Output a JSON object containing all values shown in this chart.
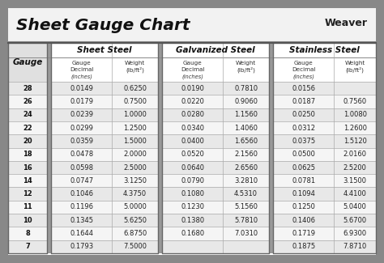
{
  "title": "Sheet Gauge Chart",
  "bg_outer": "#888888",
  "bg_white": "#ffffff",
  "bg_header_row": "#d8d8d8",
  "bg_row_odd": "#e8e8e8",
  "bg_row_even": "#f5f5f5",
  "bg_sep": "#aaaaaa",
  "gauges": [
    28,
    26,
    24,
    22,
    20,
    18,
    16,
    14,
    12,
    11,
    10,
    8,
    7
  ],
  "sheet_steel_dec": [
    "0.0149",
    "0.0179",
    "0.0239",
    "0.0299",
    "0.0359",
    "0.0478",
    "0.0598",
    "0.0747",
    "0.1046",
    "0.1196",
    "0.1345",
    "0.1644",
    "0.1793"
  ],
  "sheet_steel_wt": [
    "0.6250",
    "0.7500",
    "1.0000",
    "1.2500",
    "1.5000",
    "2.0000",
    "2.5000",
    "3.1250",
    "4.3750",
    "5.0000",
    "5.6250",
    "6.8750",
    "7.5000"
  ],
  "galv_dec": [
    "0.0190",
    "0.0220",
    "0.0280",
    "0.0340",
    "0.0400",
    "0.0520",
    "0.0640",
    "0.0790",
    "0.1080",
    "0.1230",
    "0.1380",
    "0.1680",
    ""
  ],
  "galv_wt": [
    "0.7810",
    "0.9060",
    "1.1560",
    "1.4060",
    "1.6560",
    "2.1560",
    "2.6560",
    "3.2810",
    "4.5310",
    "5.1560",
    "5.7810",
    "7.0310",
    ""
  ],
  "ss_dec": [
    "0.0156",
    "0.0187",
    "0.0250",
    "0.0312",
    "0.0375",
    "0.0500",
    "0.0625",
    "0.0781",
    "0.1094",
    "0.1250",
    "0.1406",
    "0.1719",
    "0.1875"
  ],
  "ss_wt": [
    "",
    "0.7560",
    "1.0080",
    "1.2600",
    "1.5120",
    "2.0160",
    "2.5200",
    "3.1500",
    "4.4100",
    "5.0400",
    "5.6700",
    "6.9300",
    "7.8710"
  ]
}
